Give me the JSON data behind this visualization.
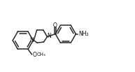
{
  "bg_color": "#ffffff",
  "line_color": "#2a2a2a",
  "text_color": "#111111",
  "lw": 1.1,
  "figsize": [
    1.93,
    1.03
  ],
  "dpi": 100,
  "xlim": [
    0,
    19.3
  ],
  "ylim": [
    0,
    10.3
  ]
}
